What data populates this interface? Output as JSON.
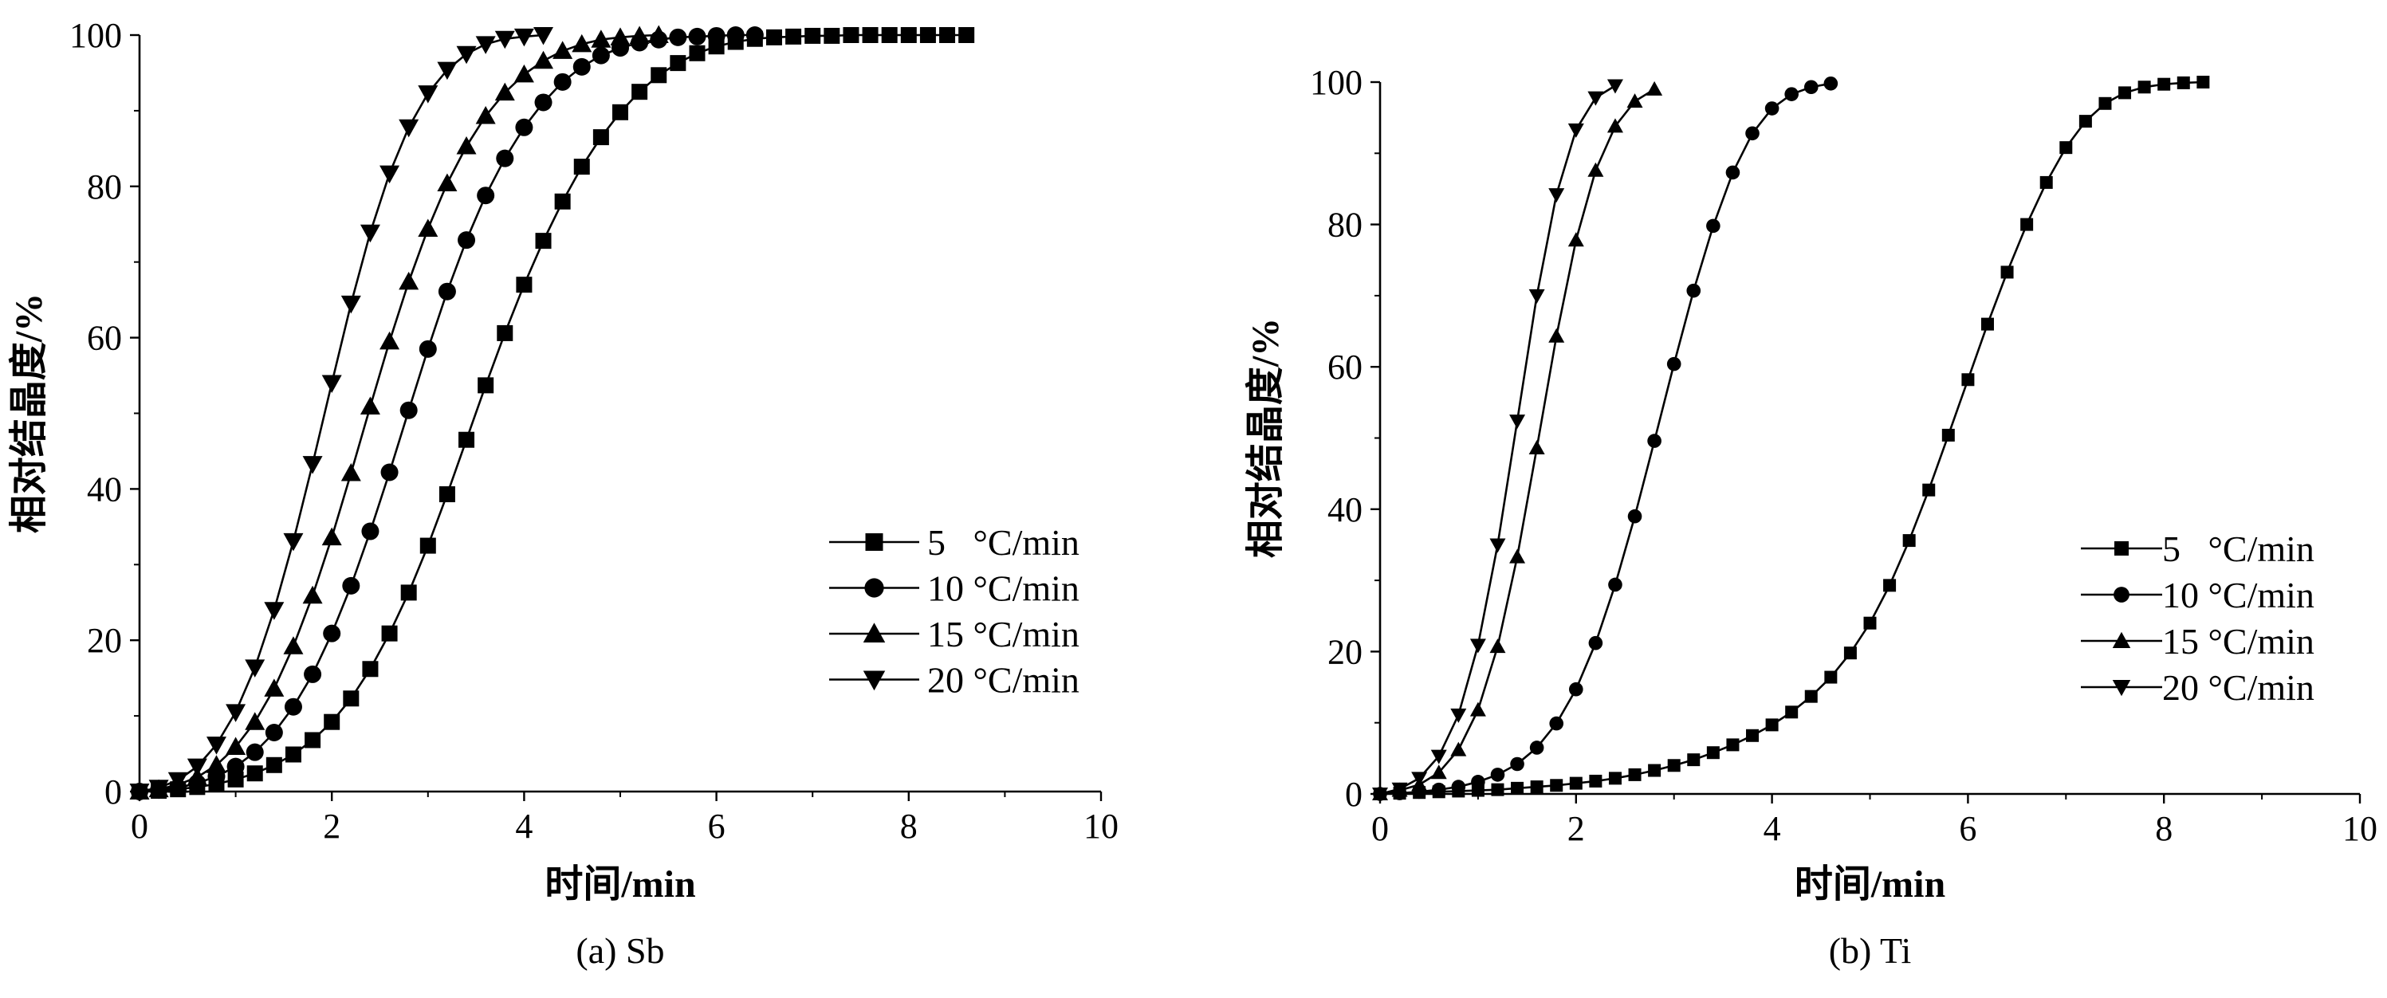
{
  "colors": {
    "ink": "#000000",
    "background": "#ffffff"
  },
  "chart_data": [
    {
      "type": "line",
      "caption": "(a) Sb",
      "xlabel": "时间/min",
      "ylabel": "相对结晶度/%",
      "xlim": [
        0,
        10
      ],
      "ylim": [
        0,
        100
      ],
      "xticks": [
        0,
        2,
        4,
        6,
        8,
        10
      ],
      "yticks": [
        0,
        20,
        40,
        60,
        80,
        100
      ],
      "legend_position": "right-middle",
      "series": [
        {
          "name": "5",
          "label": "5   °C/min",
          "marker": "square",
          "x": [
            0,
            0.2,
            0.4,
            0.6,
            0.8,
            1.0,
            1.2,
            1.4,
            1.6,
            1.8,
            2.0,
            2.2,
            2.4,
            2.6,
            2.8,
            3.0,
            3.2,
            3.4,
            3.6,
            3.8,
            4.0,
            4.2,
            4.4,
            4.6,
            4.8,
            5.0,
            5.2,
            5.4,
            5.6,
            5.8,
            6.0,
            6.2,
            6.4,
            6.6,
            6.8,
            7.0,
            7.2,
            7.4,
            7.6,
            7.8,
            8.0,
            8.2,
            8.4,
            8.6
          ],
          "y": [
            0,
            0.1,
            0.3,
            0.6,
            1.0,
            1.6,
            2.4,
            3.5,
            4.9,
            6.8,
            9.2,
            12.3,
            16.2,
            20.9,
            26.3,
            32.5,
            39.3,
            46.5,
            53.7,
            60.6,
            67.0,
            72.8,
            78.0,
            82.6,
            86.5,
            89.8,
            92.5,
            94.7,
            96.3,
            97.6,
            98.5,
            99.1,
            99.5,
            99.7,
            99.8,
            99.9,
            99.9,
            100,
            100,
            100,
            100,
            100,
            100,
            100
          ]
        },
        {
          "name": "10",
          "label": "10 °C/min",
          "marker": "circle",
          "x": [
            0,
            0.2,
            0.4,
            0.6,
            0.8,
            1.0,
            1.2,
            1.4,
            1.6,
            1.8,
            2.0,
            2.2,
            2.4,
            2.6,
            2.8,
            3.0,
            3.2,
            3.4,
            3.6,
            3.8,
            4.0,
            4.2,
            4.4,
            4.6,
            4.8,
            5.0,
            5.2,
            5.4,
            5.6,
            5.8,
            6.0,
            6.2,
            6.4
          ],
          "y": [
            0,
            0.2,
            0.5,
            1.1,
            2.0,
            3.3,
            5.2,
            7.8,
            11.2,
            15.5,
            20.9,
            27.2,
            34.4,
            42.2,
            50.4,
            58.5,
            66.1,
            72.9,
            78.8,
            83.7,
            87.8,
            91.1,
            93.8,
            95.8,
            97.3,
            98.3,
            99.0,
            99.4,
            99.7,
            99.8,
            99.9,
            100,
            100
          ]
        },
        {
          "name": "15",
          "label": "15 °C/min",
          "marker": "triangle-up",
          "x": [
            0,
            0.2,
            0.4,
            0.6,
            0.8,
            1.0,
            1.2,
            1.4,
            1.6,
            1.8,
            2.0,
            2.2,
            2.4,
            2.6,
            2.8,
            3.0,
            3.2,
            3.4,
            3.6,
            3.8,
            4.0,
            4.2,
            4.4,
            4.6,
            4.8,
            5.0,
            5.2,
            5.4
          ],
          "y": [
            0,
            0.3,
            0.9,
            1.9,
            3.5,
            5.9,
            9.2,
            13.6,
            19.2,
            25.9,
            33.6,
            42.1,
            50.9,
            59.5,
            67.4,
            74.4,
            80.4,
            85.3,
            89.3,
            92.4,
            94.8,
            96.6,
            97.9,
            98.8,
            99.4,
            99.7,
            99.9,
            100
          ]
        },
        {
          "name": "20",
          "label": "20 °C/min",
          "marker": "triangle-down",
          "x": [
            0,
            0.2,
            0.4,
            0.6,
            0.8,
            1.0,
            1.2,
            1.4,
            1.6,
            1.8,
            2.0,
            2.2,
            2.4,
            2.6,
            2.8,
            3.0,
            3.2,
            3.4,
            3.6,
            3.8,
            4.0,
            4.2
          ],
          "y": [
            0,
            0.5,
            1.5,
            3.3,
            6.2,
            10.5,
            16.4,
            24.0,
            33.1,
            43.3,
            54.0,
            64.5,
            73.9,
            81.7,
            87.8,
            92.3,
            95.4,
            97.5,
            98.8,
            99.5,
            99.8,
            100
          ]
        }
      ]
    },
    {
      "type": "line",
      "caption": "(b) Ti",
      "xlabel": "时间/min",
      "ylabel": "相对结晶度/%",
      "xlim": [
        0,
        10
      ],
      "ylim": [
        0,
        100
      ],
      "xticks": [
        0,
        2,
        4,
        6,
        8,
        10
      ],
      "yticks": [
        0,
        20,
        40,
        60,
        80,
        100
      ],
      "legend_position": "right-middle",
      "series": [
        {
          "name": "5",
          "label": "5   °C/min",
          "marker": "square",
          "x": [
            0,
            0.2,
            0.4,
            0.6,
            0.8,
            1.0,
            1.2,
            1.4,
            1.6,
            1.8,
            2.0,
            2.2,
            2.4,
            2.6,
            2.8,
            3.0,
            3.2,
            3.4,
            3.6,
            3.8,
            4.0,
            4.2,
            4.4,
            4.6,
            4.8,
            5.0,
            5.2,
            5.4,
            5.6,
            5.8,
            6.0,
            6.2,
            6.4,
            6.6,
            6.8,
            7.0,
            7.2,
            7.4,
            7.6,
            7.8,
            8.0,
            8.2,
            8.4
          ],
          "y": [
            0,
            0.1,
            0.2,
            0.3,
            0.4,
            0.5,
            0.6,
            0.8,
            1.0,
            1.2,
            1.5,
            1.8,
            2.2,
            2.7,
            3.3,
            4.0,
            4.8,
            5.8,
            6.9,
            8.2,
            9.7,
            11.5,
            13.7,
            16.4,
            19.8,
            24.0,
            29.3,
            35.6,
            42.7,
            50.4,
            58.2,
            66.0,
            73.3,
            80.0,
            85.9,
            90.8,
            94.5,
            97.0,
            98.5,
            99.3,
            99.7,
            99.9,
            100
          ]
        },
        {
          "name": "10",
          "label": "10 °C/min",
          "marker": "circle",
          "x": [
            0,
            0.2,
            0.4,
            0.6,
            0.8,
            1.0,
            1.2,
            1.4,
            1.6,
            1.8,
            2.0,
            2.2,
            2.4,
            2.6,
            2.8,
            3.0,
            3.2,
            3.4,
            3.6,
            3.8,
            4.0,
            4.2,
            4.4,
            4.6
          ],
          "y": [
            0,
            0.1,
            0.3,
            0.6,
            1.0,
            1.7,
            2.7,
            4.2,
            6.5,
            9.9,
            14.7,
            21.2,
            29.4,
            39.0,
            49.6,
            60.4,
            70.7,
            79.8,
            87.3,
            92.8,
            96.3,
            98.3,
            99.3,
            99.8
          ]
        },
        {
          "name": "15",
          "label": "15 °C/min",
          "marker": "triangle-up",
          "x": [
            0,
            0.2,
            0.4,
            0.6,
            0.8,
            1.0,
            1.2,
            1.4,
            1.6,
            1.8,
            2.0,
            2.2,
            2.4,
            2.6,
            2.8
          ],
          "y": [
            0,
            0.5,
            1.3,
            3.0,
            6.2,
            11.8,
            20.7,
            33.3,
            48.6,
            64.3,
            77.8,
            87.6,
            93.8,
            97.3,
            99.0
          ]
        },
        {
          "name": "20",
          "label": "20 °C/min",
          "marker": "triangle-down",
          "x": [
            0,
            0.2,
            0.4,
            0.6,
            0.8,
            1.0,
            1.2,
            1.4,
            1.6,
            1.8,
            2.0,
            2.2,
            2.4
          ],
          "y": [
            0,
            0.7,
            2.2,
            5.3,
            11.1,
            20.9,
            35.0,
            52.4,
            70.0,
            84.2,
            93.3,
            97.8,
            99.5
          ]
        }
      ]
    }
  ]
}
